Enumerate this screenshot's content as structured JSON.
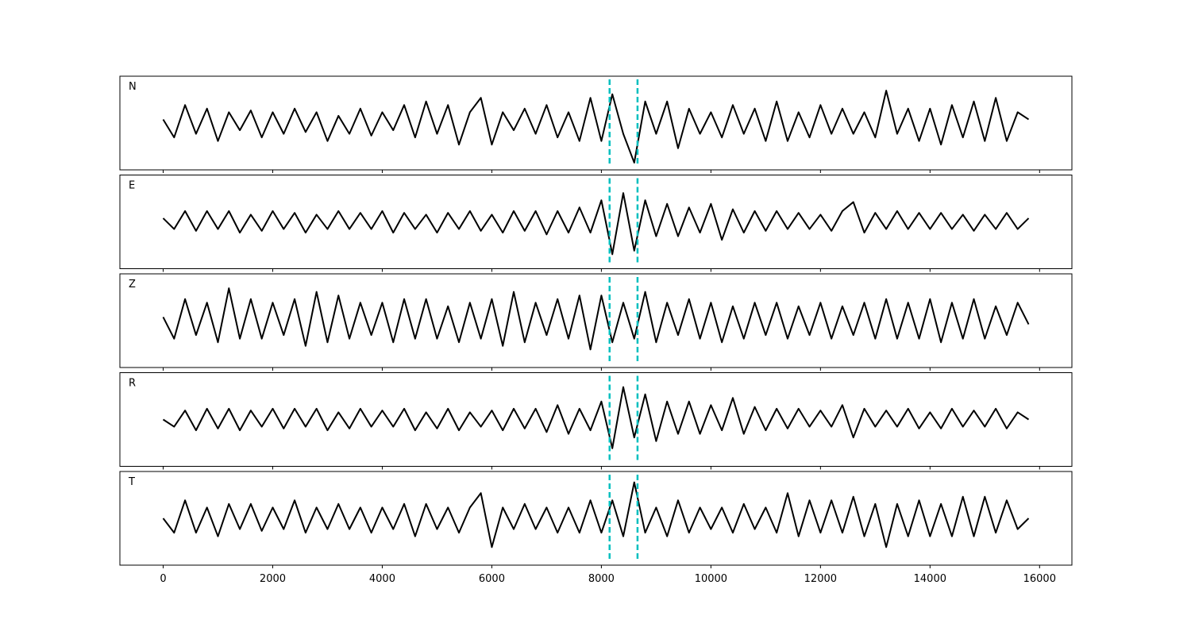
{
  "chart_data": {
    "type": "line",
    "x": [
      0,
      200,
      400,
      600,
      800,
      1000,
      1200,
      1400,
      1600,
      1800,
      2000,
      2200,
      2400,
      2600,
      2800,
      3000,
      3200,
      3400,
      3600,
      3800,
      4000,
      4200,
      4400,
      4600,
      4800,
      5000,
      5200,
      5400,
      5600,
      5800,
      6000,
      6200,
      6400,
      6600,
      6800,
      7000,
      7200,
      7400,
      7600,
      7800,
      8000,
      8200,
      8400,
      8600,
      8800,
      9000,
      9200,
      9400,
      9600,
      9800,
      10000,
      10200,
      10400,
      10600,
      10800,
      11000,
      11200,
      11400,
      11600,
      11800,
      12000,
      12200,
      12400,
      12600,
      12800,
      13000,
      13200,
      13400,
      13600,
      13800,
      14000,
      14200,
      14400,
      14600,
      14800,
      15000,
      15200,
      15400,
      15600,
      15800
    ],
    "xlim": [
      -790,
      16590
    ],
    "xticks": [
      0,
      2000,
      4000,
      6000,
      8000,
      10000,
      12000,
      14000,
      16000
    ],
    "ylim": [
      -1.3,
      1.3
    ],
    "line_color": "#000000",
    "vlines": {
      "values": [
        8150,
        8660
      ],
      "color": "#00bfbf"
    },
    "series": [
      {
        "name": "N",
        "values": [
          0.1,
          -0.4,
          0.5,
          -0.3,
          0.4,
          -0.5,
          0.3,
          -0.2,
          0.35,
          -0.4,
          0.3,
          -0.3,
          0.4,
          -0.25,
          0.3,
          -0.5,
          0.2,
          -0.3,
          0.4,
          -0.35,
          0.3,
          -0.2,
          0.5,
          -0.4,
          0.6,
          -0.3,
          0.5,
          -0.6,
          0.3,
          0.7,
          -0.6,
          0.3,
          -0.2,
          0.4,
          -0.3,
          0.5,
          -0.4,
          0.3,
          -0.5,
          0.7,
          -0.5,
          0.8,
          -0.3,
          -1.1,
          0.6,
          -0.3,
          0.6,
          -0.7,
          0.4,
          -0.3,
          0.3,
          -0.4,
          0.5,
          -0.3,
          0.4,
          -0.5,
          0.6,
          -0.5,
          0.3,
          -0.4,
          0.5,
          -0.3,
          0.4,
          -0.3,
          0.3,
          -0.4,
          0.9,
          -0.3,
          0.4,
          -0.5,
          0.4,
          -0.6,
          0.5,
          -0.4,
          0.6,
          -0.5,
          0.7,
          -0.5,
          0.3,
          0.1
        ]
      },
      {
        "name": "E",
        "values": [
          0.1,
          -0.2,
          0.3,
          -0.25,
          0.3,
          -0.2,
          0.3,
          -0.3,
          0.2,
          -0.25,
          0.3,
          -0.2,
          0.25,
          -0.3,
          0.2,
          -0.2,
          0.3,
          -0.2,
          0.25,
          -0.2,
          0.3,
          -0.3,
          0.25,
          -0.2,
          0.2,
          -0.3,
          0.25,
          -0.2,
          0.3,
          -0.25,
          0.2,
          -0.3,
          0.3,
          -0.25,
          0.3,
          -0.35,
          0.3,
          -0.3,
          0.4,
          -0.3,
          0.6,
          -0.9,
          0.8,
          -0.8,
          0.6,
          -0.4,
          0.5,
          -0.4,
          0.4,
          -0.3,
          0.5,
          -0.5,
          0.35,
          -0.3,
          0.3,
          -0.25,
          0.3,
          -0.2,
          0.25,
          -0.2,
          0.2,
          -0.25,
          0.3,
          0.55,
          -0.3,
          0.25,
          -0.2,
          0.3,
          -0.2,
          0.25,
          -0.2,
          0.25,
          -0.2,
          0.2,
          -0.25,
          0.2,
          -0.2,
          0.25,
          -0.2,
          0.1
        ]
      },
      {
        "name": "Z",
        "values": [
          0.1,
          -0.5,
          0.6,
          -0.4,
          0.5,
          -0.6,
          0.9,
          -0.5,
          0.6,
          -0.5,
          0.5,
          -0.4,
          0.6,
          -0.7,
          0.8,
          -0.6,
          0.7,
          -0.5,
          0.5,
          -0.4,
          0.5,
          -0.6,
          0.6,
          -0.5,
          0.6,
          -0.5,
          0.4,
          -0.6,
          0.5,
          -0.5,
          0.6,
          -0.7,
          0.8,
          -0.6,
          0.5,
          -0.4,
          0.6,
          -0.5,
          0.7,
          -0.8,
          0.7,
          -0.6,
          0.5,
          -0.5,
          0.8,
          -0.6,
          0.5,
          -0.4,
          0.6,
          -0.5,
          0.5,
          -0.6,
          0.4,
          -0.5,
          0.5,
          -0.4,
          0.5,
          -0.5,
          0.4,
          -0.4,
          0.5,
          -0.5,
          0.4,
          -0.4,
          0.5,
          -0.5,
          0.6,
          -0.5,
          0.5,
          -0.5,
          0.6,
          -0.6,
          0.5,
          -0.5,
          0.6,
          -0.5,
          0.4,
          -0.4,
          0.5,
          -0.1
        ]
      },
      {
        "name": "R",
        "values": [
          0.0,
          -0.2,
          0.25,
          -0.3,
          0.3,
          -0.25,
          0.3,
          -0.3,
          0.25,
          -0.2,
          0.3,
          -0.25,
          0.3,
          -0.2,
          0.3,
          -0.3,
          0.2,
          -0.25,
          0.3,
          -0.2,
          0.25,
          -0.2,
          0.3,
          -0.3,
          0.2,
          -0.25,
          0.3,
          -0.3,
          0.2,
          -0.2,
          0.25,
          -0.3,
          0.3,
          -0.25,
          0.3,
          -0.35,
          0.4,
          -0.4,
          0.3,
          -0.3,
          0.5,
          -0.8,
          0.9,
          -0.5,
          0.7,
          -0.6,
          0.5,
          -0.4,
          0.5,
          -0.4,
          0.4,
          -0.3,
          0.6,
          -0.4,
          0.35,
          -0.3,
          0.3,
          -0.25,
          0.3,
          -0.2,
          0.25,
          -0.2,
          0.4,
          -0.5,
          0.3,
          -0.2,
          0.25,
          -0.2,
          0.3,
          -0.25,
          0.2,
          -0.25,
          0.3,
          -0.2,
          0.25,
          -0.2,
          0.3,
          -0.25,
          0.2,
          0.0
        ]
      },
      {
        "name": "T",
        "values": [
          0.0,
          -0.4,
          0.5,
          -0.4,
          0.3,
          -0.5,
          0.4,
          -0.3,
          0.4,
          -0.35,
          0.3,
          -0.3,
          0.5,
          -0.4,
          0.3,
          -0.3,
          0.4,
          -0.3,
          0.3,
          -0.4,
          0.3,
          -0.3,
          0.4,
          -0.5,
          0.4,
          -0.3,
          0.3,
          -0.4,
          0.3,
          0.7,
          -0.8,
          0.3,
          -0.3,
          0.4,
          -0.3,
          0.3,
          -0.4,
          0.3,
          -0.4,
          0.5,
          -0.4,
          0.5,
          -0.5,
          1.0,
          -0.4,
          0.3,
          -0.5,
          0.5,
          -0.4,
          0.3,
          -0.3,
          0.3,
          -0.4,
          0.4,
          -0.3,
          0.3,
          -0.4,
          0.7,
          -0.5,
          0.5,
          -0.4,
          0.5,
          -0.4,
          0.6,
          -0.5,
          0.4,
          -0.8,
          0.4,
          -0.5,
          0.5,
          -0.5,
          0.4,
          -0.5,
          0.6,
          -0.5,
          0.6,
          -0.4,
          0.5,
          -0.3,
          0.0
        ]
      }
    ]
  }
}
